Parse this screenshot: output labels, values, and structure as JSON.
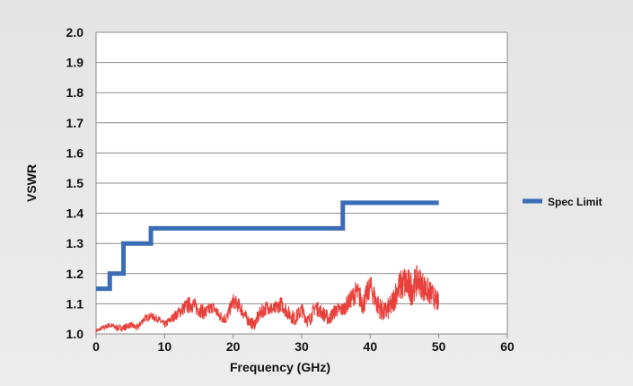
{
  "chart_data": {
    "type": "line",
    "xlabel": "Frequency (GHz)",
    "ylabel": "VSWR",
    "xlim": [
      0,
      60
    ],
    "ylim": [
      1.0,
      2.0
    ],
    "x_ticks": [
      "0",
      "10",
      "20",
      "30",
      "40",
      "50",
      "60"
    ],
    "y_ticks": [
      "1.0",
      "1.1",
      "1.2",
      "1.3",
      "1.4",
      "1.5",
      "1.6",
      "1.7",
      "1.8",
      "1.9",
      "2.0"
    ],
    "grid": "horizontal",
    "legend_position": "right",
    "series": [
      {
        "name": "Spec Limit",
        "color": "#3a6db5",
        "style": "step",
        "x": [
          0,
          2,
          2,
          4,
          4,
          8,
          8,
          36,
          36,
          50
        ],
        "y": [
          1.15,
          1.15,
          1.2,
          1.2,
          1.3,
          1.3,
          1.35,
          1.35,
          1.435,
          1.435
        ]
      },
      {
        "color": "#e8413c",
        "style": "noisy-line",
        "x": [
          0,
          1,
          2,
          3,
          4,
          5,
          6,
          7,
          8,
          9,
          10,
          11,
          12,
          13,
          14,
          15,
          16,
          17,
          18,
          19,
          20,
          21,
          22,
          23,
          24,
          25,
          26,
          27,
          28,
          29,
          30,
          31,
          32,
          33,
          34,
          35,
          36,
          37,
          38,
          39,
          40,
          41,
          42,
          43,
          44,
          45,
          46,
          47,
          48,
          49,
          50
        ],
        "y": [
          1.01,
          1.02,
          1.03,
          1.02,
          1.02,
          1.03,
          1.02,
          1.05,
          1.06,
          1.05,
          1.03,
          1.05,
          1.07,
          1.09,
          1.1,
          1.08,
          1.07,
          1.09,
          1.06,
          1.05,
          1.11,
          1.09,
          1.05,
          1.03,
          1.07,
          1.09,
          1.08,
          1.1,
          1.07,
          1.05,
          1.08,
          1.04,
          1.09,
          1.07,
          1.05,
          1.08,
          1.08,
          1.11,
          1.14,
          1.1,
          1.16,
          1.1,
          1.07,
          1.09,
          1.15,
          1.17,
          1.15,
          1.18,
          1.15,
          1.13,
          1.1
        ],
        "amplitude": [
          0.005,
          0.008,
          0.01,
          0.01,
          0.012,
          0.01,
          0.012,
          0.012,
          0.012,
          0.012,
          0.012,
          0.015,
          0.02,
          0.025,
          0.03,
          0.025,
          0.025,
          0.02,
          0.02,
          0.02,
          0.025,
          0.025,
          0.02,
          0.02,
          0.025,
          0.025,
          0.025,
          0.025,
          0.025,
          0.025,
          0.025,
          0.025,
          0.025,
          0.025,
          0.025,
          0.025,
          0.025,
          0.03,
          0.04,
          0.04,
          0.04,
          0.04,
          0.035,
          0.04,
          0.05,
          0.06,
          0.06,
          0.05,
          0.05,
          0.04,
          0.035
        ]
      }
    ]
  }
}
